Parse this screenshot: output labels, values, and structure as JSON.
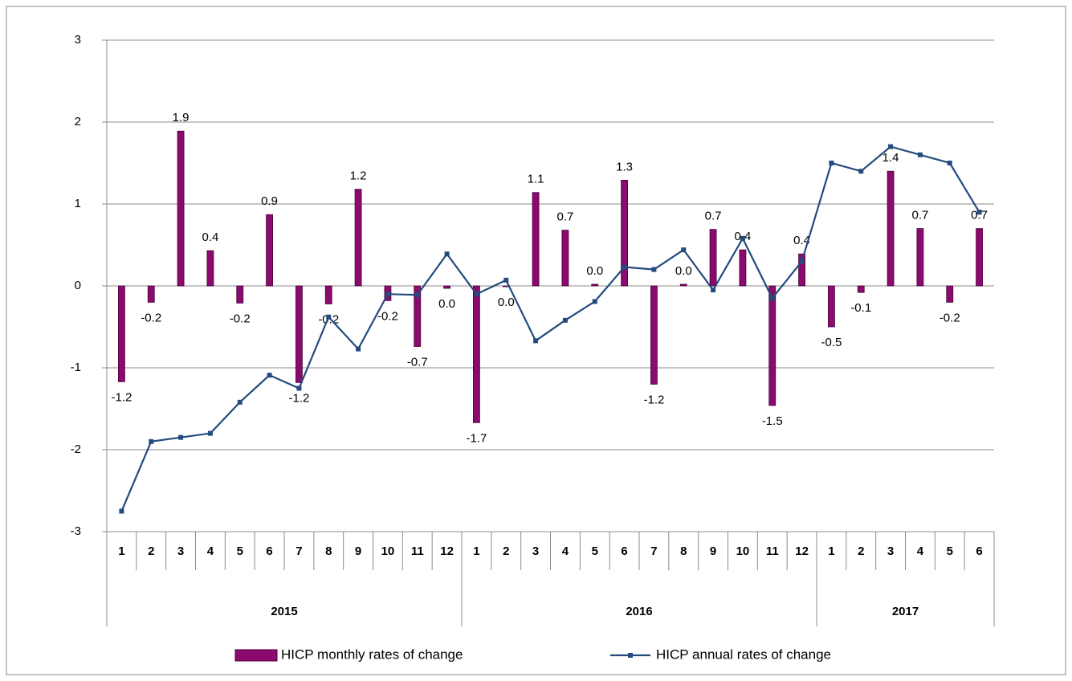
{
  "chart_data": {
    "type": "bar-line",
    "category_groups": [
      {
        "name": "2015",
        "categories": [
          "1",
          "2",
          "3",
          "4",
          "5",
          "6",
          "7",
          "8",
          "9",
          "10",
          "11",
          "12"
        ]
      },
      {
        "name": "2016",
        "categories": [
          "1",
          "2",
          "3",
          "4",
          "5",
          "6",
          "7",
          "8",
          "9",
          "10",
          "11",
          "12"
        ]
      },
      {
        "name": "2017",
        "categories": [
          "1",
          "2",
          "3",
          "4",
          "5",
          "6"
        ]
      }
    ],
    "series": [
      {
        "name": "HICP monthly rates of change",
        "type": "bar",
        "color": "#8b0a6e",
        "values": [
          -1.17,
          -0.2,
          1.89,
          0.43,
          -0.21,
          0.87,
          -1.18,
          -0.22,
          1.18,
          -0.18,
          -0.74,
          -0.03,
          -1.67,
          -0.01,
          1.14,
          0.68,
          0.02,
          1.29,
          -1.2,
          0.02,
          0.69,
          0.44,
          -1.46,
          0.39,
          -0.5,
          -0.08,
          1.4,
          0.7,
          -0.2,
          0.7
        ],
        "value_labels": [
          "-1.2",
          "-0.2",
          "1.9",
          "0.4",
          "-0.2",
          "0.9",
          "-1.2",
          "-0.2",
          "1.2",
          "-0.2",
          "-0.7",
          "0.0",
          "-1.7",
          "0.0",
          "1.1",
          "0.7",
          "0.0",
          "1.3",
          "-1.2",
          "0.0",
          "0.7",
          "0.4",
          "-1.5",
          "0.4",
          "-0.5",
          "-0.1",
          "1.4",
          "0.7",
          "-0.2",
          "0.7"
        ]
      },
      {
        "name": "HICP annual rates of change",
        "type": "line",
        "color": "#234b7d",
        "values": [
          -2.75,
          -1.9,
          -1.85,
          -1.8,
          -1.42,
          -1.09,
          -1.25,
          -0.38,
          -0.77,
          -0.1,
          -0.11,
          0.39,
          -0.1,
          0.07,
          -0.67,
          -0.42,
          -0.19,
          0.23,
          0.2,
          0.44,
          -0.05,
          0.58,
          -0.15,
          0.3,
          1.5,
          1.4,
          1.7,
          1.6,
          1.5,
          0.9
        ]
      }
    ],
    "ylim": [
      -3,
      3
    ],
    "yticks": [
      -3,
      -2,
      -1,
      0,
      1,
      2,
      3
    ],
    "grid": true,
    "legend": "bottom"
  }
}
